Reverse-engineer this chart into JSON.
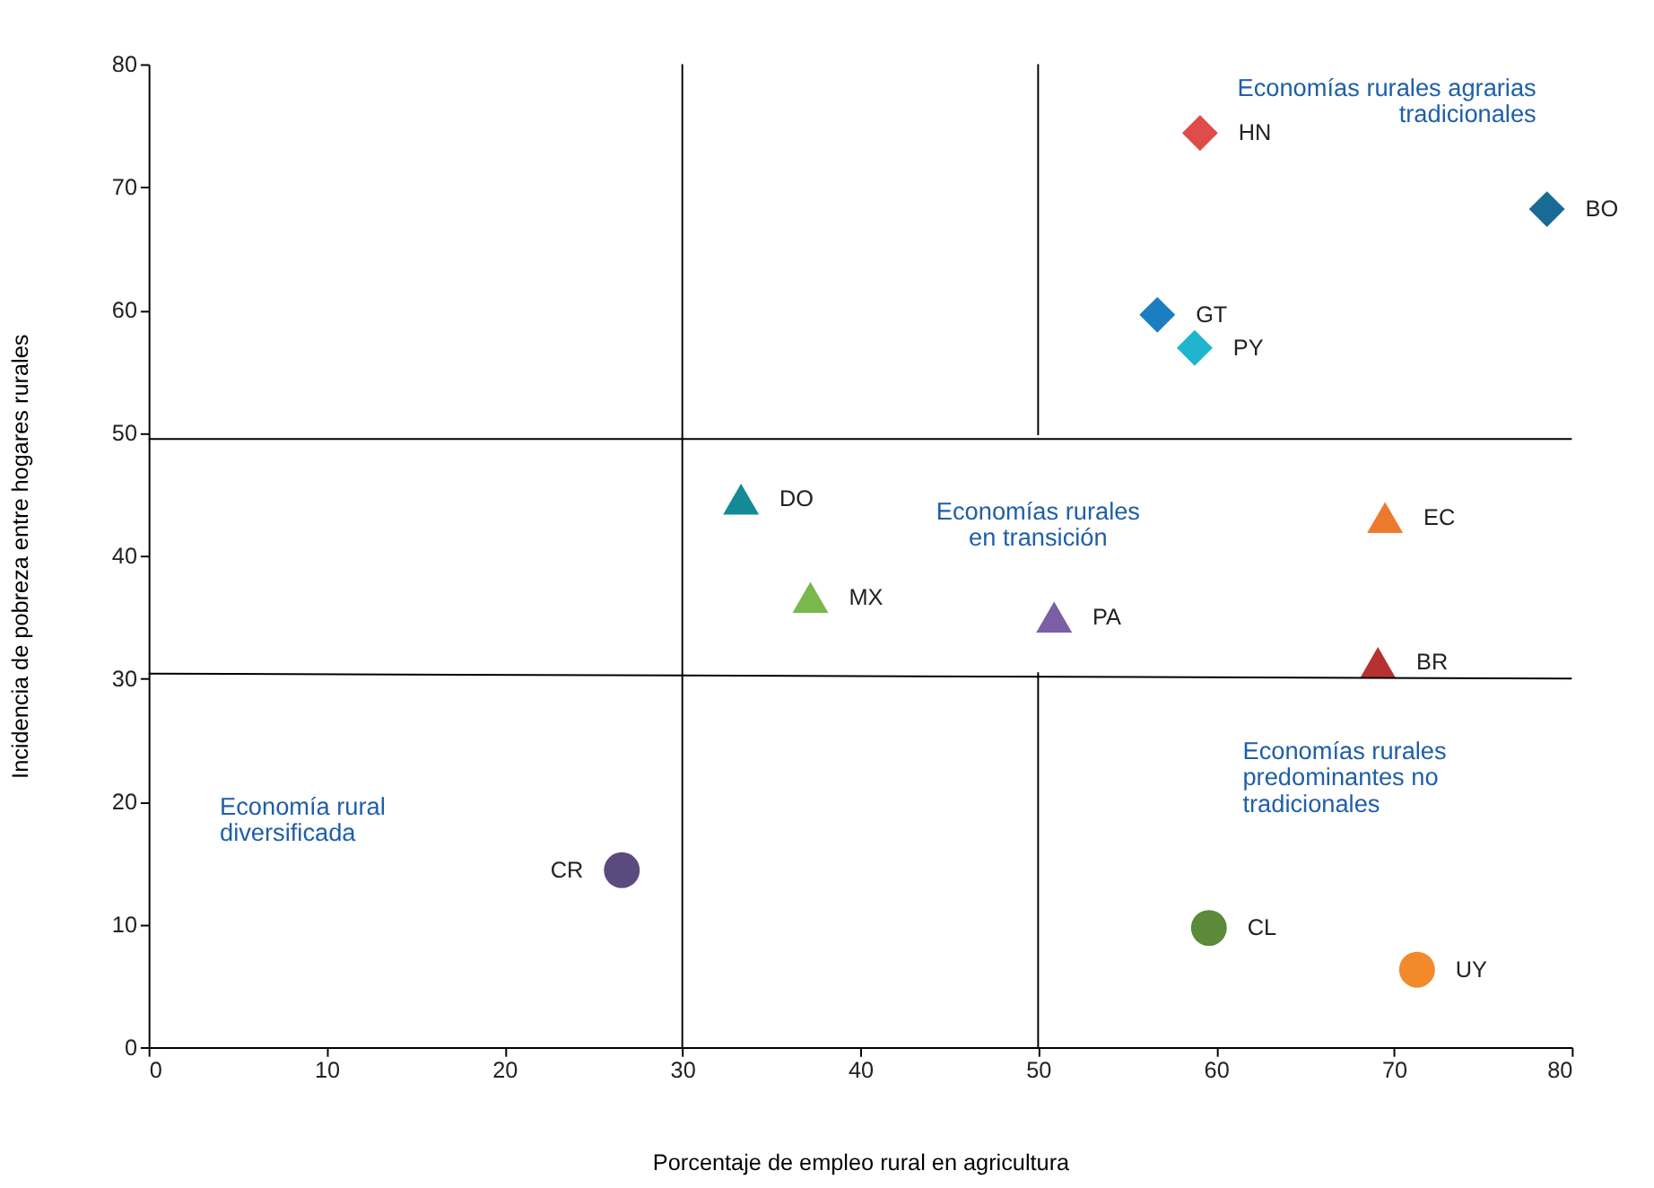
{
  "chart_data": {
    "type": "scatter",
    "xlabel": "Porcentaje de empleo rural en agricultura",
    "ylabel": "Incidencia de pobreza entre hogares rurales",
    "xlim": [
      0,
      80
    ],
    "ylim": [
      0,
      80
    ],
    "xticks": [
      0,
      10,
      20,
      30,
      40,
      50,
      60,
      70,
      80
    ],
    "yticks": [
      0,
      10,
      20,
      30,
      40,
      50,
      60,
      70,
      80
    ],
    "grid": false,
    "series": [
      {
        "type": "scatter",
        "marker": "diamond",
        "x": [
          59.1,
          78.6,
          56.7,
          58.8
        ],
        "values": [
          74.4,
          68.2,
          59.6,
          56.9
        ],
        "colors": [
          "#e04b4b",
          "#1a6a96",
          "#1a7ec0",
          "#1fb5cf"
        ]
      },
      {
        "type": "scatter",
        "marker": "triangle",
        "x": [
          33.3,
          37.2,
          50.9,
          69.5,
          69.1
        ],
        "values": [
          44.6,
          36.6,
          35.0,
          43.1,
          31.3
        ],
        "colors": [
          "#138a96",
          "#79b84a",
          "#7a5fa5",
          "#ec7a2e",
          "#b63232"
        ]
      },
      {
        "type": "scatter",
        "marker": "circle",
        "x": [
          26.6,
          59.6,
          71.3
        ],
        "values": [
          14.4,
          9.7,
          6.3
        ],
        "colors": [
          "#5a4a7e",
          "#5a8a3a",
          "#f28a2b"
        ]
      },
      {
        "type": "line",
        "color": "#000000",
        "x": [
          30,
          30
        ],
        "values": [
          0,
          80
        ]
      },
      {
        "type": "line",
        "color": "#000000",
        "x": [
          50,
          50
        ],
        "values": [
          49.8,
          80
        ]
      },
      {
        "type": "line",
        "color": "#000000",
        "x": [
          50,
          50
        ],
        "values": [
          0,
          30.5
        ]
      },
      {
        "type": "line",
        "color": "#000000",
        "x": [
          0,
          80
        ],
        "values": [
          49.5,
          49.5
        ]
      },
      {
        "type": "line",
        "color": "#000000",
        "x": [
          0,
          80
        ],
        "values": [
          30.4,
          30.0
        ]
      }
    ],
    "annotations": [
      {
        "text": "HN",
        "x": 59.1,
        "y": 74.4
      },
      {
        "text": "BO",
        "x": 78.6,
        "y": 68.2
      },
      {
        "text": "GT",
        "x": 56.7,
        "y": 59.6
      },
      {
        "text": "PY",
        "x": 58.8,
        "y": 56.9
      },
      {
        "text": "DO",
        "x": 33.3,
        "y": 44.6
      },
      {
        "text": "MX",
        "x": 37.2,
        "y": 36.6
      },
      {
        "text": "PA",
        "x": 50.9,
        "y": 35.0
      },
      {
        "text": "EC",
        "x": 69.5,
        "y": 43.1
      },
      {
        "text": "BR",
        "x": 69.1,
        "y": 31.3
      },
      {
        "text": "CR",
        "x": 26.6,
        "y": 14.4
      },
      {
        "text": "CL",
        "x": 59.6,
        "y": 9.7
      },
      {
        "text": "UY",
        "x": 71.3,
        "y": 6.3
      },
      "Economías rurales agrarias\ntradicionales",
      "Economías rurales\nen transición",
      "Economías rurales\npredominantes no\ntradicionales",
      "Economía rural\ndiversificada"
    ]
  }
}
